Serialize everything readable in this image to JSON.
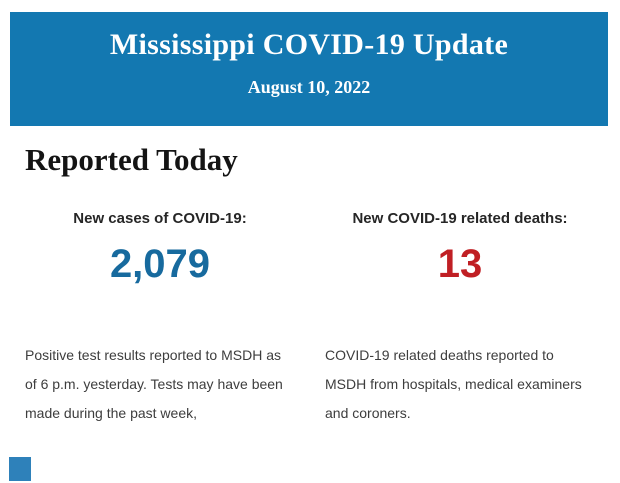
{
  "banner": {
    "title": "Mississippi COVID-19 Update",
    "date": "August 10, 2022",
    "background_color": "#1378b1",
    "text_color": "#ffffff"
  },
  "section": {
    "heading": "Reported Today"
  },
  "stats": {
    "cases": {
      "label": "New cases of COVID-19:",
      "value": "2,079",
      "value_color": "#176a9e",
      "description": "Positive test results reported to MSDH as of 6 p.m. yesterday. Tests may have been made during the past week,"
    },
    "deaths": {
      "label": "New COVID-19 related deaths:",
      "value": "13",
      "value_color": "#c01f24",
      "description": "COVID-19 related deaths reported to MSDH from hospitals, medical examiners and coroners."
    }
  },
  "footer": {
    "partial_square_color": "#2e81ba"
  }
}
